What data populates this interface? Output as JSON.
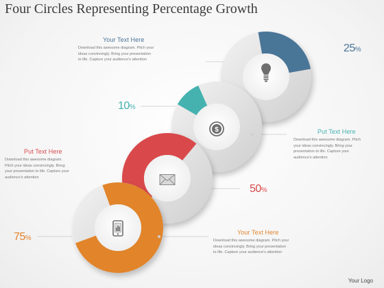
{
  "title": "Four Circles Representing Percentage Growth",
  "colors": {
    "blue": "#4a7497",
    "teal": "#44b2b0",
    "red": "#d94a4c",
    "orange": "#e1842c",
    "ring_gray": "#d9d9d9",
    "text_gray": "#777777"
  },
  "circles": [
    {
      "value": 25,
      "percent_text": "25",
      "color": "#4a7497",
      "icon": "light-bulb-icon"
    },
    {
      "value": 10,
      "percent_text": "10",
      "color": "#44b2b0",
      "icon": "dollar-coin-icon"
    },
    {
      "value": 50,
      "percent_text": "50",
      "color": "#d94a4c",
      "icon": "envelope-icon"
    },
    {
      "value": 75,
      "percent_text": "75",
      "color": "#e1842c",
      "icon": "mobile-phone-icon"
    }
  ],
  "percent_sign": "%",
  "text_blocks": [
    {
      "heading": "Your Text Here",
      "heading_color": "#4a7497",
      "lines": [
        "Download this awesome diagram. Pitch your",
        "ideas convincingly. Bring your presentation",
        "to life. Capture your audience's attention"
      ]
    },
    {
      "heading": "Put Text Here",
      "heading_color": "#44b2b0",
      "lines": [
        "Download this awesome diagram. Pitch",
        "your ideas convincingly. Bring your",
        "presentation to life. Capture your",
        "audience's attention"
      ]
    },
    {
      "heading": "Put Text Here",
      "heading_color": "#d94a4c",
      "lines": [
        "Download this awesome diagram.",
        "Pitch your ideas convincingly. Bring",
        "your presentation to life. Capture your",
        "audience's attention"
      ]
    },
    {
      "heading": "Your Text Here",
      "heading_color": "#e1842c",
      "lines": [
        "Download this awesome diagram. Pitch your",
        "ideas convincingly. Bring your presentation",
        "to life. Capture your audience's attention"
      ]
    }
  ],
  "logo": "Your Logo"
}
